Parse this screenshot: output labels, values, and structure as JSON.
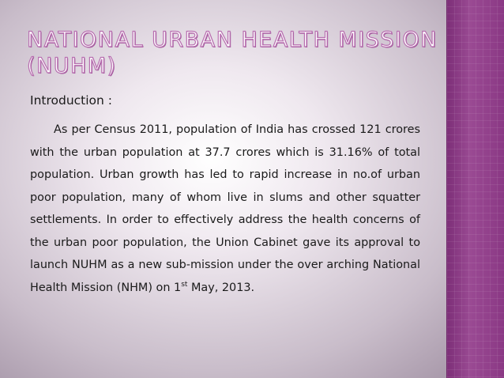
{
  "slide": {
    "title": "NATIONAL URBAN HEALTH MISSION (NUHM)",
    "section_label": "Introduction :",
    "paragraph": {
      "text_before_sup": "As per Census 2011, population of India has crossed 121 crores with the urban population at  37.7 crores which is 31.16% of total population. Urban growth has led to rapid increase in no.of urban poor population, many of whom live in slums and other squatter settlements. In order to effectively address the health concerns of the urban poor population, the Union Cabinet gave its approval to launch NUHM as a new sub-mission under the over arching National Health Mission (NHM) on 1",
      "superscript": "st",
      "text_after_sup": " May, 2013."
    }
  },
  "colors": {
    "accent_sidebar": "#8c3c86",
    "title_outline": "#b86fb0",
    "text": "#1a1a1a"
  }
}
